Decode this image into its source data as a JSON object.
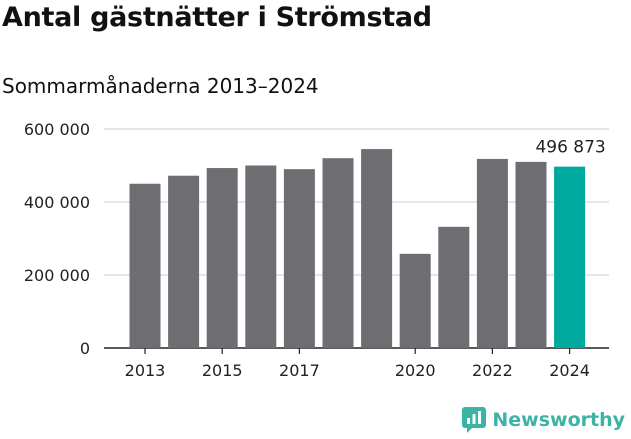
{
  "header": {
    "title": "Antal gästnätter i Strömstad",
    "subtitle": "Sommarmånaderna 2013–2024"
  },
  "brand": {
    "name": "Newsworthy",
    "icon": "newsworthy-logo-icon",
    "color": "#3bb3a5"
  },
  "colors": {
    "bar": "#6e6d72",
    "highlight": "#00a99d",
    "grid": "#dddddd"
  },
  "chart_data": {
    "type": "bar",
    "categories": [
      "2013",
      "2014",
      "2015",
      "2016",
      "2017",
      "2018",
      "2019",
      "2020",
      "2021",
      "2022",
      "2023",
      "2024"
    ],
    "values": [
      450000,
      472000,
      493000,
      500000,
      490000,
      520000,
      545000,
      258000,
      332000,
      518000,
      510000,
      496873
    ],
    "highlight_index": 11,
    "annotation": {
      "index": 11,
      "text": "496 873"
    },
    "ylim": [
      0,
      600000
    ],
    "yticks": [
      0,
      200000,
      400000,
      600000
    ],
    "ytick_labels": [
      "0",
      "200 000",
      "400 000",
      "600 000"
    ],
    "xtick_labels": [
      "2013",
      "2015",
      "2017",
      "2020",
      "2022",
      "2024"
    ],
    "xtick_indices": [
      0,
      2,
      4,
      7,
      9,
      11
    ],
    "grid": true,
    "xlabel": "",
    "ylabel": ""
  }
}
